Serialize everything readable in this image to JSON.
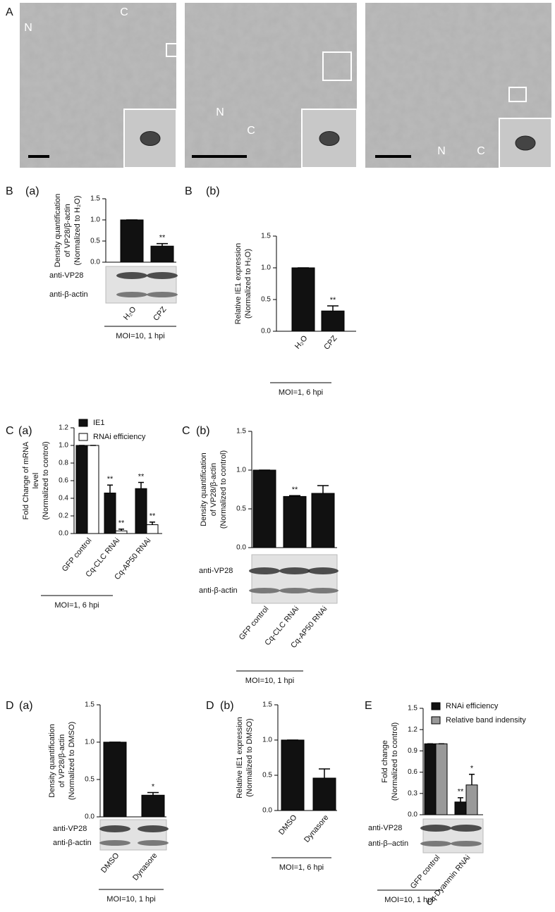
{
  "figure_a": {
    "label": "A",
    "images": [
      {
        "labels": [
          "N",
          "C"
        ]
      },
      {
        "labels": [
          "N",
          "C"
        ]
      },
      {
        "labels": [
          "N",
          "C"
        ]
      }
    ]
  },
  "chart_data": [
    {
      "type": "bar",
      "panel": "B",
      "subpanel": "(a)",
      "ylabel": [
        "Density quantification",
        "of VP28/β-actin",
        "(Normalized to H₂O)"
      ],
      "categories": [
        "H₂O",
        "CPZ"
      ],
      "values": [
        1,
        0.38
      ],
      "errors": [
        0,
        0.06
      ],
      "significance": [
        null,
        "**"
      ],
      "color": "#111111",
      "ylim": [
        0,
        1.5
      ],
      "yticks": [
        {
          "value": 0,
          "label": "0.0"
        },
        {
          "value": 0.5,
          "label": "0.5"
        },
        {
          "value": 1,
          "label": "1.0"
        },
        {
          "value": 1.5,
          "label": "1.5"
        }
      ],
      "blots": [
        "anti-VP28",
        "anti-β-actin"
      ],
      "condition": "MOI=10, 1 hpi"
    },
    {
      "type": "bar",
      "panel": "B",
      "subpanel": "(b)",
      "ylabel": [
        "Relative IE1 expression",
        "(Normalized to H₂O)"
      ],
      "categories": [
        "H₂O",
        "CPZ"
      ],
      "values": [
        1,
        0.32
      ],
      "errors": [
        0,
        0.08
      ],
      "significance": [
        null,
        "**"
      ],
      "color": "#111111",
      "ylim": [
        0,
        1.5
      ],
      "yticks": [
        {
          "value": 0,
          "label": "0.0"
        },
        {
          "value": 0.5,
          "label": "0.5"
        },
        {
          "value": 1,
          "label": "1.0"
        },
        {
          "value": 1.5,
          "label": "1.5"
        }
      ],
      "condition": "MOI=1, 6  hpi"
    },
    {
      "type": "grouped-bar",
      "panel": "C",
      "subpanel": "(a)",
      "ylabel": [
        "Fold Change of mRNA",
        "level",
        "(Normalized to control)"
      ],
      "categories": [
        "GFP control",
        "Cq-CLC RNAi",
        "Cq-AP50 RNAi"
      ],
      "series": [
        {
          "name": "IE1",
          "color": "#111111",
          "values": [
            1,
            0.46,
            0.51
          ],
          "errors": [
            0,
            0.09,
            0.07
          ],
          "significance": [
            null,
            "**",
            "**"
          ]
        },
        {
          "name": "RNAi efficiency",
          "color": "#ffffff",
          "values": [
            1,
            0.03,
            0.1
          ],
          "errors": [
            0,
            0.02,
            0.03
          ],
          "significance": [
            null,
            "**",
            "**"
          ]
        }
      ],
      "ylim": [
        0,
        1.2
      ],
      "yticks": [
        {
          "value": 0,
          "label": "0.0"
        },
        {
          "value": 0.2,
          "label": "0.2"
        },
        {
          "value": 0.4,
          "label": "0.4"
        },
        {
          "value": 0.6,
          "label": "0.6"
        },
        {
          "value": 0.8,
          "label": "0.8"
        },
        {
          "value": 1,
          "label": "1.0"
        },
        {
          "value": 1.2,
          "label": "1.2"
        }
      ],
      "legend": "top",
      "condition": "MOI=1, 6  hpi"
    },
    {
      "type": "bar",
      "panel": "C",
      "subpanel": "(b)",
      "ylabel": [
        "Density quantification",
        "of VP28/β-actin",
        "(Normalized to control)"
      ],
      "categories": [
        "GFP control",
        "Cq-CLC RNAi",
        "Cq-AP50 RNAi"
      ],
      "values": [
        1,
        0.66,
        0.7
      ],
      "errors": [
        0,
        0.01,
        0.1
      ],
      "significance": [
        null,
        "**",
        null
      ],
      "color": "#111111",
      "ylim": [
        0,
        1.5
      ],
      "yticks": [
        {
          "value": 0,
          "label": "0.0"
        },
        {
          "value": 0.5,
          "label": "0.5"
        },
        {
          "value": 1,
          "label": "1.0"
        },
        {
          "value": 1.5,
          "label": "1.5"
        }
      ],
      "blots": [
        "anti-VP28",
        "anti-β-actin"
      ],
      "condition": "MOI=10, 1 hpi"
    },
    {
      "type": "bar",
      "panel": "D",
      "subpanel": "(a)",
      "ylabel": [
        "Density quantification",
        "of VP28/β-actin",
        "(Normalized to DMSO)"
      ],
      "categories": [
        "DMSO",
        "Dynasore"
      ],
      "values": [
        1,
        0.29
      ],
      "errors": [
        0,
        0.035
      ],
      "significance": [
        null,
        "*"
      ],
      "color": "#111111",
      "ylim": [
        0,
        1.5
      ],
      "yticks": [
        {
          "value": 0,
          "label": "0.0"
        },
        {
          "value": 0.5,
          "label": "0.5"
        },
        {
          "value": 1,
          "label": "1.0"
        },
        {
          "value": 1.5,
          "label": "1.5"
        }
      ],
      "blots": [
        "anti-VP28",
        "anti-β-actin"
      ],
      "condition": "MOI=10, 1 hpi"
    },
    {
      "type": "bar",
      "panel": "D",
      "subpanel": "(b)",
      "ylabel": [
        "Relative IE1 expression",
        "(Normalized to DMSO)"
      ],
      "categories": [
        "DMSO",
        "Dynasore"
      ],
      "values": [
        1,
        0.46
      ],
      "errors": [
        0,
        0.13
      ],
      "color": "#111111",
      "ylim": [
        0,
        1.5
      ],
      "yticks": [
        {
          "value": 0,
          "label": "0.0"
        },
        {
          "value": 0.5,
          "label": "0.5"
        },
        {
          "value": 1,
          "label": "1.0"
        },
        {
          "value": 1.5,
          "label": "1.5"
        }
      ],
      "condition": "MOI=1, 6  hpi"
    },
    {
      "type": "grouped-bar",
      "panel": "E",
      "ylabel": [
        "Fold change",
        "(Normalized to control)"
      ],
      "categories": [
        "GFP control",
        "Cq-Dyanmin RNAi"
      ],
      "series": [
        {
          "name": "RNAi efficiency",
          "color": "#111111",
          "values": [
            1,
            0.18
          ],
          "errors": [
            0,
            0.06
          ],
          "significance": [
            null,
            "**"
          ]
        },
        {
          "name": "Relative band indensity",
          "color": "#999999",
          "values": [
            1,
            0.42
          ],
          "errors": [
            0,
            0.15
          ],
          "significance": [
            null,
            "*"
          ]
        }
      ],
      "ylim": [
        0,
        1.5
      ],
      "yticks": [
        {
          "value": 0,
          "label": "0.0"
        },
        {
          "value": 0.3,
          "label": "0.3"
        },
        {
          "value": 0.6,
          "label": "0.6"
        },
        {
          "value": 0.9,
          "label": "0.9"
        },
        {
          "value": 1.2,
          "label": "1.2"
        },
        {
          "value": 1.5,
          "label": "1.5"
        }
      ],
      "legend": "top",
      "blots": [
        "anti-VP28",
        "anti-β–actin"
      ],
      "condition": "MOI=10, 1 hpi"
    }
  ]
}
